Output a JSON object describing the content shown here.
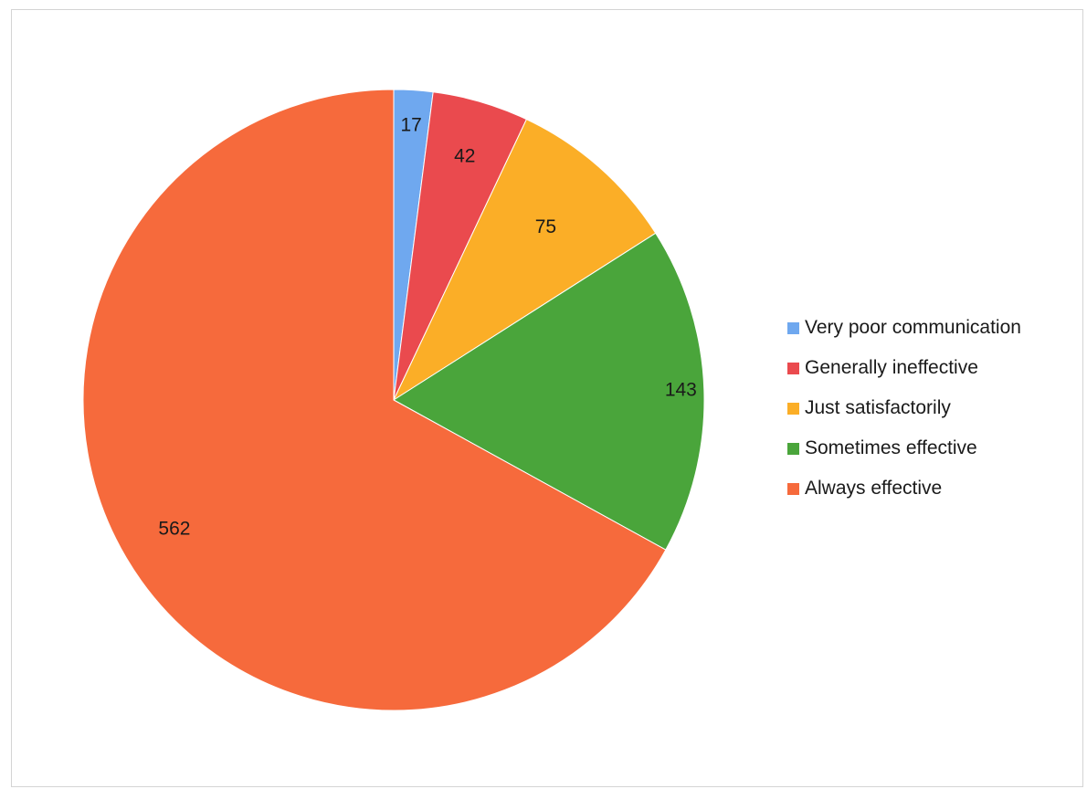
{
  "chart_data": {
    "type": "pie",
    "categories": [
      "Very poor communication",
      "Generally ineffective",
      "Just satisfactorily",
      "Sometimes effective",
      "Always effective"
    ],
    "values": [
      17,
      42,
      75,
      143,
      562
    ],
    "data_labels": [
      "17",
      "42",
      "75",
      "143",
      "562"
    ],
    "colors": [
      "#6fa8ef",
      "#ea4a4e",
      "#fbae27",
      "#4aa53b",
      "#f66a3c"
    ],
    "start_angle": "12 o'clock",
    "direction": "clockwise",
    "legend_position": "right"
  }
}
